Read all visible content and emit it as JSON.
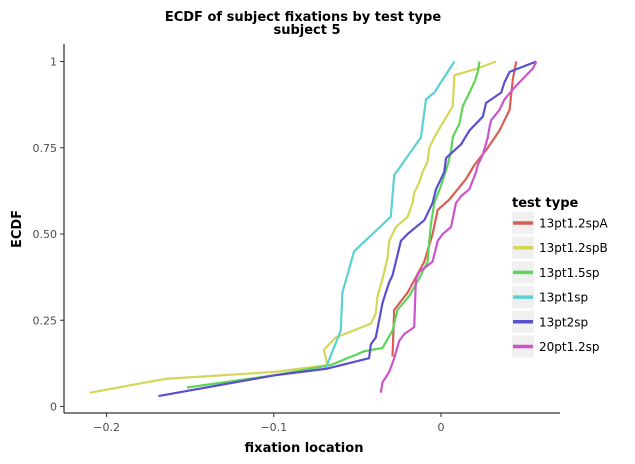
{
  "chart_data": {
    "type": "line",
    "title": "ECDF of subject fixations by test type",
    "subtitle": "subject 5",
    "xlabel": "fixation location",
    "ylabel": "ECDF",
    "xlim": [
      -0.225,
      0.07
    ],
    "ylim": [
      -0.02,
      1.05
    ],
    "x_ticks": [
      -0.2,
      -0.1,
      0
    ],
    "x_tick_labels": [
      "−0.2",
      "−0.1",
      "0"
    ],
    "y_ticks": [
      0,
      0.25,
      0.5,
      0.75,
      1
    ],
    "y_tick_labels": [
      "0",
      "0.25",
      "0.50",
      "0.75",
      "1"
    ],
    "grid": false,
    "legend": {
      "title": "test type",
      "position": "right"
    },
    "series": [
      {
        "name": "13pt1.2spA",
        "color": "#d95f56",
        "points": [
          [
            -0.029,
            0.145
          ],
          [
            -0.028,
            0.28
          ],
          [
            -0.02,
            0.33
          ],
          [
            -0.01,
            0.42
          ],
          [
            -0.005,
            0.5
          ],
          [
            -0.002,
            0.57
          ],
          [
            0.005,
            0.6
          ],
          [
            0.015,
            0.66
          ],
          [
            0.02,
            0.7
          ],
          [
            0.028,
            0.75
          ],
          [
            0.035,
            0.8
          ],
          [
            0.041,
            0.86
          ],
          [
            0.043,
            0.95
          ],
          [
            0.045,
            1.0
          ]
        ]
      },
      {
        "name": "13pt1.2spB",
        "color": "#d4d65a",
        "points": [
          [
            -0.21,
            0.04
          ],
          [
            -0.165,
            0.08
          ],
          [
            -0.1,
            0.1
          ],
          [
            -0.068,
            0.12
          ],
          [
            -0.07,
            0.165
          ],
          [
            -0.063,
            0.2
          ],
          [
            -0.042,
            0.24
          ],
          [
            -0.039,
            0.27
          ],
          [
            -0.038,
            0.32
          ],
          [
            -0.035,
            0.37
          ],
          [
            -0.032,
            0.43
          ],
          [
            -0.031,
            0.48
          ],
          [
            -0.027,
            0.52
          ],
          [
            -0.02,
            0.55
          ],
          [
            -0.017,
            0.59
          ],
          [
            -0.016,
            0.62
          ],
          [
            -0.013,
            0.65
          ],
          [
            -0.011,
            0.68
          ],
          [
            -0.008,
            0.71
          ],
          [
            -0.007,
            0.75
          ],
          [
            -0.004,
            0.78
          ],
          [
            0.002,
            0.83
          ],
          [
            0.007,
            0.87
          ],
          [
            0.008,
            0.96
          ],
          [
            0.022,
            0.98
          ],
          [
            0.033,
            1.0
          ]
        ]
      },
      {
        "name": "13pt1.5sp",
        "color": "#5fd45b",
        "points": [
          [
            -0.152,
            0.055
          ],
          [
            -0.1,
            0.09
          ],
          [
            -0.066,
            0.12
          ],
          [
            -0.046,
            0.16
          ],
          [
            -0.035,
            0.17
          ],
          [
            -0.029,
            0.22
          ],
          [
            -0.026,
            0.28
          ],
          [
            -0.019,
            0.32
          ],
          [
            -0.012,
            0.38
          ],
          [
            -0.008,
            0.42
          ],
          [
            -0.007,
            0.48
          ],
          [
            -0.006,
            0.53
          ],
          [
            -0.004,
            0.59
          ],
          [
            0.0,
            0.64
          ],
          [
            0.004,
            0.7
          ],
          [
            0.006,
            0.74
          ],
          [
            0.007,
            0.78
          ],
          [
            0.011,
            0.82
          ],
          [
            0.013,
            0.87
          ],
          [
            0.016,
            0.9
          ],
          [
            0.02,
            0.94
          ],
          [
            0.022,
            0.97
          ],
          [
            0.023,
            1.0
          ]
        ]
      },
      {
        "name": "13pt1sp",
        "color": "#5ad2d4",
        "points": [
          [
            -0.069,
            0.11
          ],
          [
            -0.06,
            0.22
          ],
          [
            -0.059,
            0.33
          ],
          [
            -0.052,
            0.45
          ],
          [
            -0.03,
            0.55
          ],
          [
            -0.028,
            0.67
          ],
          [
            -0.012,
            0.78
          ],
          [
            -0.009,
            0.89
          ],
          [
            -0.004,
            0.91
          ],
          [
            0.008,
            1.0
          ]
        ]
      },
      {
        "name": "13pt2sp",
        "color": "#5a4fcf",
        "points": [
          [
            -0.169,
            0.03
          ],
          [
            -0.1,
            0.09
          ],
          [
            -0.068,
            0.11
          ],
          [
            -0.043,
            0.14
          ],
          [
            -0.042,
            0.18
          ],
          [
            -0.039,
            0.2
          ],
          [
            -0.037,
            0.25
          ],
          [
            -0.035,
            0.3
          ],
          [
            -0.033,
            0.33
          ],
          [
            -0.031,
            0.36
          ],
          [
            -0.029,
            0.38
          ],
          [
            -0.027,
            0.42
          ],
          [
            -0.024,
            0.48
          ],
          [
            -0.02,
            0.5
          ],
          [
            -0.01,
            0.54
          ],
          [
            -0.005,
            0.59
          ],
          [
            -0.003,
            0.63
          ],
          [
            0.0,
            0.66
          ],
          [
            0.002,
            0.68
          ],
          [
            0.003,
            0.72
          ],
          [
            0.012,
            0.76
          ],
          [
            0.017,
            0.8
          ],
          [
            0.025,
            0.84
          ],
          [
            0.027,
            0.88
          ],
          [
            0.036,
            0.91
          ],
          [
            0.038,
            0.94
          ],
          [
            0.041,
            0.97
          ],
          [
            0.057,
            1.0
          ]
        ]
      },
      {
        "name": "20pt1.2sp",
        "color": "#cc55cc",
        "points": [
          [
            -0.036,
            0.04
          ],
          [
            -0.035,
            0.07
          ],
          [
            -0.031,
            0.1
          ],
          [
            -0.028,
            0.14
          ],
          [
            -0.025,
            0.19
          ],
          [
            -0.022,
            0.21
          ],
          [
            -0.016,
            0.23
          ],
          [
            -0.015,
            0.37
          ],
          [
            -0.013,
            0.39
          ],
          [
            -0.005,
            0.42
          ],
          [
            -0.004,
            0.44
          ],
          [
            -0.002,
            0.48
          ],
          [
            0.001,
            0.5
          ],
          [
            0.006,
            0.52
          ],
          [
            0.009,
            0.59
          ],
          [
            0.012,
            0.61
          ],
          [
            0.017,
            0.63
          ],
          [
            0.021,
            0.68
          ],
          [
            0.022,
            0.7
          ],
          [
            0.025,
            0.73
          ],
          [
            0.028,
            0.78
          ],
          [
            0.029,
            0.81
          ],
          [
            0.03,
            0.83
          ],
          [
            0.035,
            0.86
          ],
          [
            0.038,
            0.89
          ],
          [
            0.045,
            0.93
          ],
          [
            0.055,
            0.98
          ],
          [
            0.057,
            1.0
          ]
        ]
      }
    ]
  }
}
